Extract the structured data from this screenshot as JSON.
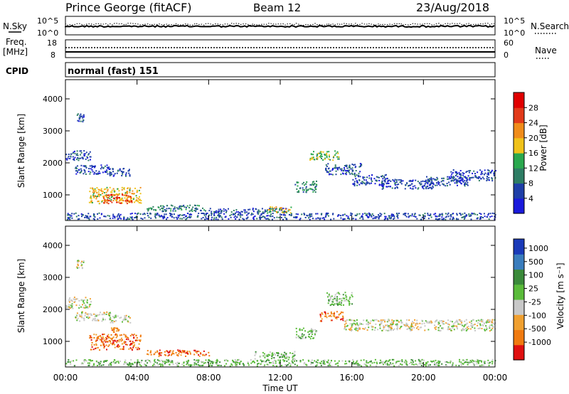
{
  "header": {
    "station": "Prince George (fitACF)",
    "beam": "Beam 12",
    "date": "23/Aug/2018"
  },
  "noise_panel": {
    "left_label": "N.Sky",
    "right_label": "N.Search",
    "yticks_left": [
      "10^5",
      "10^0"
    ],
    "yticks_right": [
      "10^5",
      "10^0"
    ]
  },
  "freq_panel": {
    "left_label": "Freq.",
    "left_unit": "[MHz]",
    "right_label": "Nave",
    "yticks_left": [
      "18",
      "8"
    ],
    "yticks_right": [
      "60",
      "0"
    ]
  },
  "cpid_panel": {
    "label": "CPID",
    "text": "normal (fast) 151"
  },
  "chart_data": [
    {
      "type": "heatmap",
      "name": "power",
      "ylabel": "Slant Range [km]",
      "ylim": [
        200,
        4600
      ],
      "yticks": [
        "1000",
        "2000",
        "3000",
        "4000"
      ],
      "xlim": [
        0,
        24
      ],
      "colorbar_label": "Power [dB]",
      "colorbar_ticks": [
        "4",
        "8",
        "12",
        "16",
        "20",
        "24",
        "28"
      ],
      "colors": [
        "#1a1adc",
        "#1f3fa8",
        "#2e7d64",
        "#2aa84e",
        "#f0c21a",
        "#f08c1a",
        "#e23a1a",
        "#e00000"
      ],
      "scatter_regions": [
        {
          "x": [
            0.6,
            1.0
          ],
          "y": [
            3300,
            3550
          ],
          "level": 1
        },
        {
          "x": [
            0.0,
            1.4
          ],
          "y": [
            2100,
            2400
          ],
          "level": 1
        },
        {
          "x": [
            0.5,
            2.5
          ],
          "y": [
            1650,
            1950
          ],
          "level": 1
        },
        {
          "x": [
            2.4,
            3.6
          ],
          "y": [
            1600,
            1850
          ],
          "level": 1
        },
        {
          "x": [
            1.3,
            4.2
          ],
          "y": [
            750,
            1250
          ],
          "level": 4
        },
        {
          "x": [
            2.1,
            3.7
          ],
          "y": [
            750,
            1050
          ],
          "level": 6
        },
        {
          "x": [
            4.5,
            7.8
          ],
          "y": [
            500,
            700
          ],
          "level": 2
        },
        {
          "x": [
            8.0,
            12.3
          ],
          "y": [
            450,
            600
          ],
          "level": 1
        },
        {
          "x": [
            11.2,
            12.6
          ],
          "y": [
            450,
            650
          ],
          "level": 4
        },
        {
          "x": [
            12.8,
            14.0
          ],
          "y": [
            1100,
            1450
          ],
          "level": 2
        },
        {
          "x": [
            13.6,
            15.3
          ],
          "y": [
            2100,
            2400
          ],
          "level": 3
        },
        {
          "x": [
            14.5,
            16.5
          ],
          "y": [
            1650,
            2000
          ],
          "level": 1
        },
        {
          "x": [
            16.0,
            18.0
          ],
          "y": [
            1300,
            1650
          ],
          "level": 1
        },
        {
          "x": [
            17.5,
            20.5
          ],
          "y": [
            1200,
            1500
          ],
          "level": 1
        },
        {
          "x": [
            20.0,
            22.5
          ],
          "y": [
            1300,
            1600
          ],
          "level": 1
        },
        {
          "x": [
            21.5,
            24.0
          ],
          "y": [
            1450,
            1800
          ],
          "level": 1
        },
        {
          "x": [
            0.0,
            24.0
          ],
          "y": [
            250,
            450
          ],
          "level": 1
        }
      ]
    },
    {
      "type": "heatmap",
      "name": "velocity",
      "ylabel": "Slant Range [km]",
      "ylim": [
        200,
        4600
      ],
      "yticks": [
        "1000",
        "2000",
        "3000",
        "4000"
      ],
      "xlim": [
        0,
        24
      ],
      "colorbar_label": "Velocity [m s⁻¹]",
      "colorbar_ticks": [
        "1000",
        "500",
        "100",
        "25",
        "-25",
        "-100",
        "-500",
        "-1000"
      ],
      "colors": [
        "#1a3ab8",
        "#3a7dbd",
        "#3a8a3a",
        "#5abb3a",
        "#c8c8c8",
        "#f0a030",
        "#f07a10",
        "#e01010"
      ],
      "scatter_regions": [
        {
          "x": [
            0.6,
            1.0
          ],
          "y": [
            3300,
            3550
          ],
          "level": 4
        },
        {
          "x": [
            0.0,
            1.4
          ],
          "y": [
            2050,
            2400
          ],
          "level": 4
        },
        {
          "x": [
            0.5,
            2.5
          ],
          "y": [
            1650,
            1950
          ],
          "level": 4
        },
        {
          "x": [
            2.4,
            3.6
          ],
          "y": [
            1600,
            1850
          ],
          "level": 4
        },
        {
          "x": [
            2.5,
            3.0
          ],
          "y": [
            1300,
            1450
          ],
          "level": 6
        },
        {
          "x": [
            1.3,
            4.2
          ],
          "y": [
            750,
            1250
          ],
          "level": 6
        },
        {
          "x": [
            4.5,
            8.0
          ],
          "y": [
            550,
            750
          ],
          "level": 6
        },
        {
          "x": [
            10.5,
            12.8
          ],
          "y": [
            450,
            700
          ],
          "level": 3
        },
        {
          "x": [
            12.8,
            14.0
          ],
          "y": [
            1100,
            1450
          ],
          "level": 3
        },
        {
          "x": [
            14.2,
            15.5
          ],
          "y": [
            1650,
            1950
          ],
          "level": 6
        },
        {
          "x": [
            14.5,
            16.0
          ],
          "y": [
            2150,
            2550
          ],
          "level": 3
        },
        {
          "x": [
            15.5,
            18.5
          ],
          "y": [
            1350,
            1700
          ],
          "level": 4
        },
        {
          "x": [
            18.0,
            24.0
          ],
          "y": [
            1350,
            1700
          ],
          "level": 4
        },
        {
          "x": [
            0.0,
            24.0
          ],
          "y": [
            250,
            450
          ],
          "level": 3
        }
      ]
    }
  ],
  "x_axis": {
    "ticks": [
      "00:00",
      "04:00",
      "08:00",
      "12:00",
      "16:00",
      "20:00",
      "00:00"
    ],
    "label": "Time UT"
  }
}
